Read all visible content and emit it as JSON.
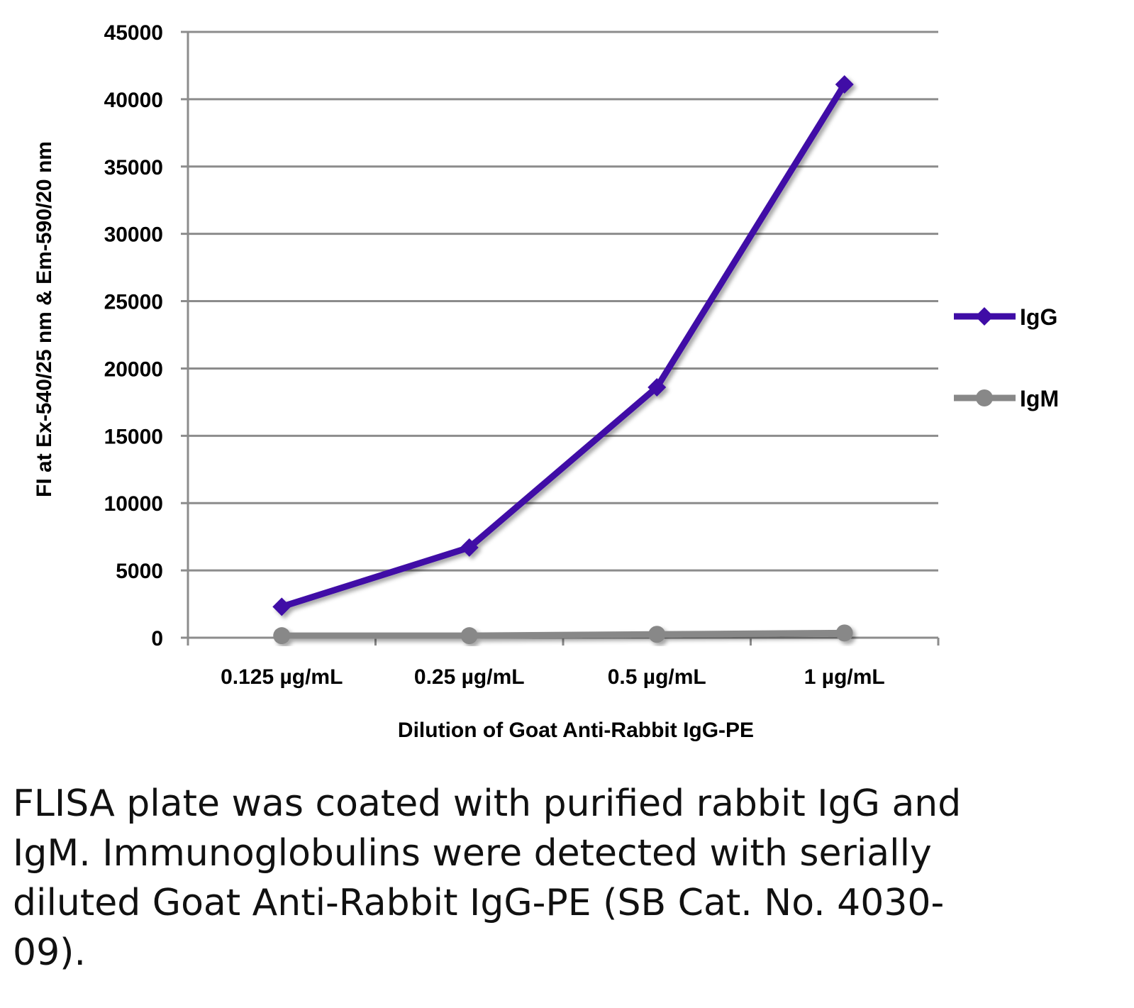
{
  "chart_data": {
    "type": "line",
    "title": "",
    "xlabel": "Dilution of Goat Anti-Rabbit IgG-PE",
    "ylabel": "FI at Ex-540/25 nm & Em-590/20 nm",
    "categories": [
      "0.125 µg/mL",
      "0.25 µg/mL",
      "0.5 µg/mL",
      "1 µg/mL"
    ],
    "ylim": [
      0,
      45000
    ],
    "yticks": [
      0,
      5000,
      10000,
      15000,
      20000,
      25000,
      30000,
      35000,
      40000,
      45000
    ],
    "grid": true,
    "legend_position": "right",
    "series": [
      {
        "name": "IgG",
        "marker": "diamond",
        "color": "#3f0ca6",
        "values": [
          2300,
          6700,
          18600,
          41100
        ]
      },
      {
        "name": "IgM",
        "marker": "circle",
        "color": "#888888",
        "values": [
          150,
          150,
          250,
          350
        ]
      }
    ]
  },
  "caption": "FLISA plate was coated with purified rabbit IgG and IgM.  Immunoglobulins were detected with serially diluted Goat Anti-Rabbit IgG-PE (SB Cat. No. 4030-09)."
}
